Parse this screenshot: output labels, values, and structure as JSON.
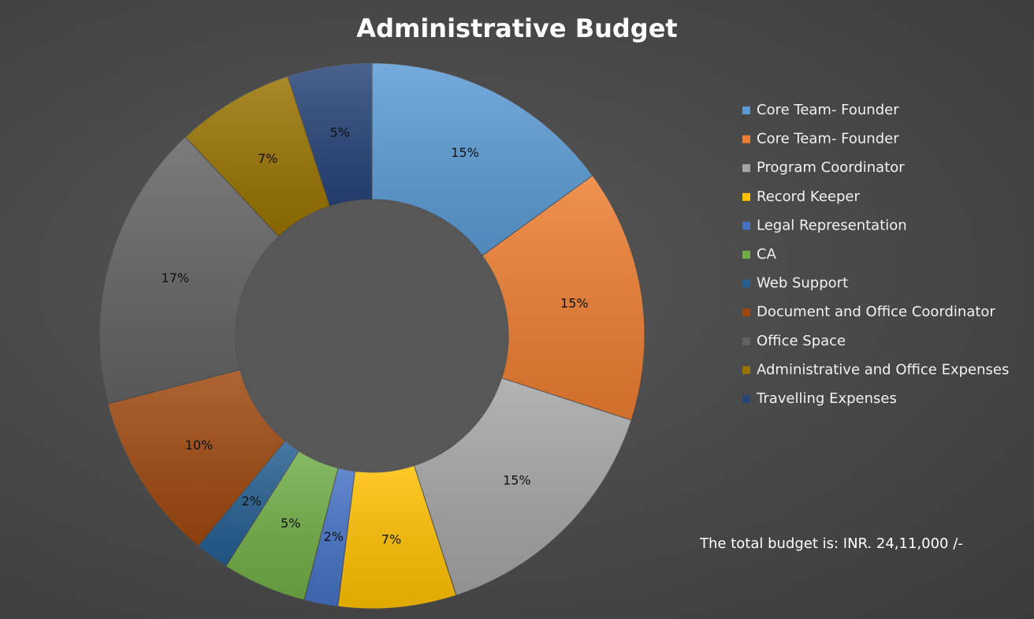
{
  "chart_data": {
    "type": "pie",
    "variant": "doughnut",
    "title": "Administrative Budget",
    "categories": [
      "Core Team- Founder",
      "Core Team- Founder",
      "Program Coordinator",
      "Record Keeper",
      "Legal Representation",
      "CA",
      "Web Support",
      "Document and Office Coordinator",
      "Office Space",
      "Administrative and Office Expenses",
      "Travelling Expenses"
    ],
    "values": [
      15,
      15,
      15,
      7,
      2,
      5,
      2,
      10,
      17,
      7,
      5
    ],
    "labels": [
      "15%",
      "15%",
      "15%",
      "7%",
      "2%",
      "5%",
      "2%",
      "10%",
      "17%",
      "7%",
      "5%"
    ],
    "colors": [
      "#5b9bd5",
      "#ed7d31",
      "#a5a5a5",
      "#ffc000",
      "#4472c4",
      "#70ad47",
      "#255e91",
      "#9e480e",
      "#636363",
      "#997300",
      "#264478"
    ],
    "legend_position": "right"
  },
  "note": "The total budget is: INR. 24,11,000 /-"
}
